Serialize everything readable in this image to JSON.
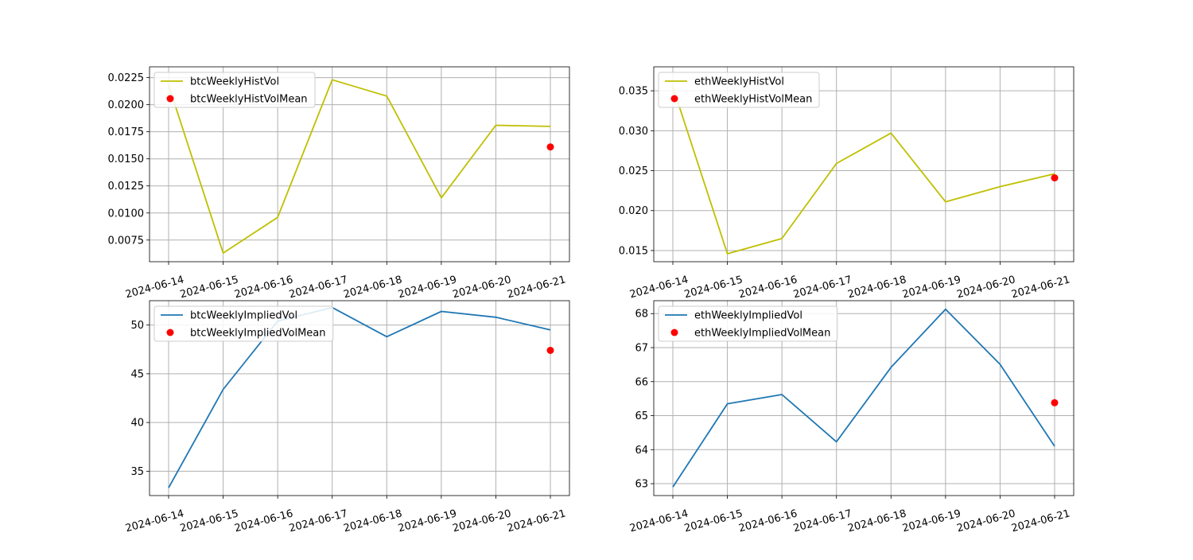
{
  "chart_data": [
    {
      "type": "line",
      "x": [
        "2024-06-14",
        "2024-06-15",
        "2024-06-16",
        "2024-06-17",
        "2024-06-18",
        "2024-06-19",
        "2024-06-20",
        "2024-06-21"
      ],
      "series": [
        {
          "name": "btcWeeklyHistVol",
          "kind": "line",
          "color": "#bfbf00",
          "values": [
            0.0218,
            0.0063,
            0.0096,
            0.0223,
            0.0208,
            0.0114,
            0.0181,
            0.018
          ]
        }
      ],
      "points": [
        {
          "name": "btcWeeklyHistVolMean",
          "color": "#ff0000",
          "x": "2024-06-21",
          "y": 0.0161
        }
      ],
      "yticks": [
        "0.0075",
        "0.0100",
        "0.0125",
        "0.0150",
        "0.0175",
        "0.0200",
        "0.0225"
      ],
      "ylim": [
        0.0055,
        0.0235
      ],
      "grid": true,
      "legend": "upper-left"
    },
    {
      "type": "line",
      "x": [
        "2024-06-14",
        "2024-06-15",
        "2024-06-16",
        "2024-06-17",
        "2024-06-18",
        "2024-06-19",
        "2024-06-20",
        "2024-06-21"
      ],
      "series": [
        {
          "name": "ethWeeklyHistVol",
          "kind": "line",
          "color": "#bfbf00",
          "values": [
            0.0355,
            0.0146,
            0.0165,
            0.0259,
            0.0297,
            0.0211,
            0.023,
            0.0246
          ]
        }
      ],
      "points": [
        {
          "name": "ethWeeklyHistVolMean",
          "color": "#ff0000",
          "x": "2024-06-21",
          "y": 0.0241
        }
      ],
      "yticks": [
        "0.015",
        "0.020",
        "0.025",
        "0.030",
        "0.035"
      ],
      "ylim": [
        0.0136,
        0.038
      ],
      "grid": true,
      "legend": "upper-left"
    },
    {
      "type": "line",
      "x": [
        "2024-06-14",
        "2024-06-15",
        "2024-06-16",
        "2024-06-17",
        "2024-06-18",
        "2024-06-19",
        "2024-06-20",
        "2024-06-21"
      ],
      "series": [
        {
          "name": "btcWeeklyImpliedVol",
          "kind": "line",
          "color": "#1f77b4",
          "values": [
            33.3,
            43.4,
            50.4,
            51.8,
            48.8,
            51.4,
            50.8,
            49.5
          ]
        }
      ],
      "points": [
        {
          "name": "btcWeeklyImpliedVolMean",
          "color": "#ff0000",
          "x": "2024-06-21",
          "y": 47.4
        }
      ],
      "yticks": [
        "35",
        "40",
        "45",
        "50"
      ],
      "ylim": [
        32.5,
        52.5
      ],
      "grid": true,
      "legend": "upper-left"
    },
    {
      "type": "line",
      "x": [
        "2024-06-14",
        "2024-06-15",
        "2024-06-16",
        "2024-06-17",
        "2024-06-18",
        "2024-06-19",
        "2024-06-20",
        "2024-06-21"
      ],
      "series": [
        {
          "name": "ethWeeklyImpliedVol",
          "kind": "line",
          "color": "#1f77b4",
          "values": [
            62.9,
            65.35,
            65.62,
            64.23,
            66.42,
            68.13,
            66.51,
            64.1
          ]
        }
      ],
      "points": [
        {
          "name": "ethWeeklyImpliedVolMean",
          "color": "#ff0000",
          "x": "2024-06-21",
          "y": 65.38
        }
      ],
      "yticks": [
        "63",
        "64",
        "65",
        "66",
        "67",
        "68"
      ],
      "ylim": [
        62.65,
        68.38
      ],
      "grid": true,
      "legend": "upper-left"
    }
  ]
}
